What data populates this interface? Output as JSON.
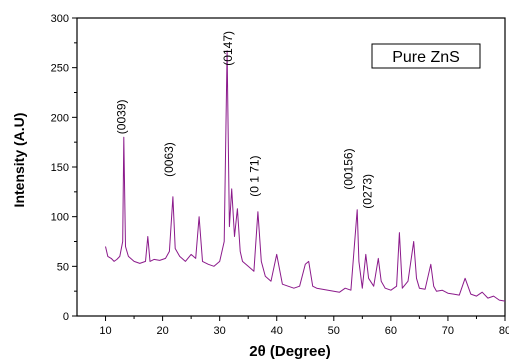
{
  "chart_data": {
    "type": "line",
    "xlabel": "2θ (Degree)",
    "ylabel": "Intensity (A.U)",
    "xlim": [
      5,
      80
    ],
    "ylim": [
      0,
      300
    ],
    "x_ticks": [
      10,
      20,
      30,
      40,
      50,
      60,
      70,
      80
    ],
    "y_ticks": [
      0,
      50,
      100,
      150,
      200,
      250,
      300
    ],
    "legend": "Pure ZnS",
    "legend_position": "top-right",
    "grid": false,
    "line_color": "#8b1a8b",
    "series": [
      {
        "x": [
          10,
          10.4,
          11,
          11.5,
          12,
          12.5,
          13,
          13.2,
          13.5,
          14,
          15,
          16,
          17,
          17.4,
          17.8,
          18.5,
          19.5,
          20.5,
          21.2,
          21.8,
          22.2,
          23,
          24,
          25,
          25.8,
          26.4,
          27,
          28,
          29,
          30,
          30.8,
          31.3,
          31.7,
          32.1,
          32.6,
          33.1,
          33.6,
          34,
          35,
          36,
          36.7,
          37.3,
          38,
          39,
          40,
          41,
          42,
          43,
          44,
          45,
          45.6,
          46.3,
          47,
          48,
          49,
          50,
          51,
          52,
          53,
          54.1,
          54.4,
          55,
          55.6,
          56.1,
          57,
          57.8,
          58.3,
          59,
          60,
          61,
          61.5,
          62,
          63,
          64,
          64.5,
          65,
          66,
          67,
          67.5,
          68,
          69,
          70,
          71,
          72,
          73,
          74,
          75,
          76,
          77,
          78,
          79,
          80
        ],
        "y": [
          70,
          60,
          58,
          55,
          57,
          60,
          75,
          180,
          70,
          60,
          55,
          53,
          55,
          80,
          55,
          57,
          56,
          58,
          65,
          120,
          68,
          60,
          55,
          62,
          58,
          100,
          55,
          52,
          50,
          55,
          75,
          267,
          90,
          128,
          80,
          108,
          65,
          55,
          50,
          45,
          105,
          55,
          40,
          35,
          62,
          32,
          30,
          28,
          30,
          52,
          55,
          30,
          28,
          27,
          26,
          25,
          24,
          28,
          26,
          107,
          55,
          28,
          62,
          38,
          30,
          58,
          35,
          28,
          26,
          30,
          84,
          28,
          35,
          75,
          38,
          28,
          27,
          52,
          30,
          25,
          26,
          23,
          22,
          21,
          38,
          22,
          20,
          24,
          18,
          20,
          16,
          15
        ]
      }
    ],
    "annotations": [
      {
        "text": "(0039)",
        "x": 13.5,
        "y": 183
      },
      {
        "text": "(0063)",
        "x": 21.8,
        "y": 140
      },
      {
        "text": "(0147)",
        "x": 32.2,
        "y": 252
      },
      {
        "text": "(0 1 71)",
        "x": 36.8,
        "y": 120
      },
      {
        "text": "(00156)",
        "x": 53.3,
        "y": 127
      },
      {
        "text": "(0273)",
        "x": 56.6,
        "y": 108
      }
    ]
  }
}
